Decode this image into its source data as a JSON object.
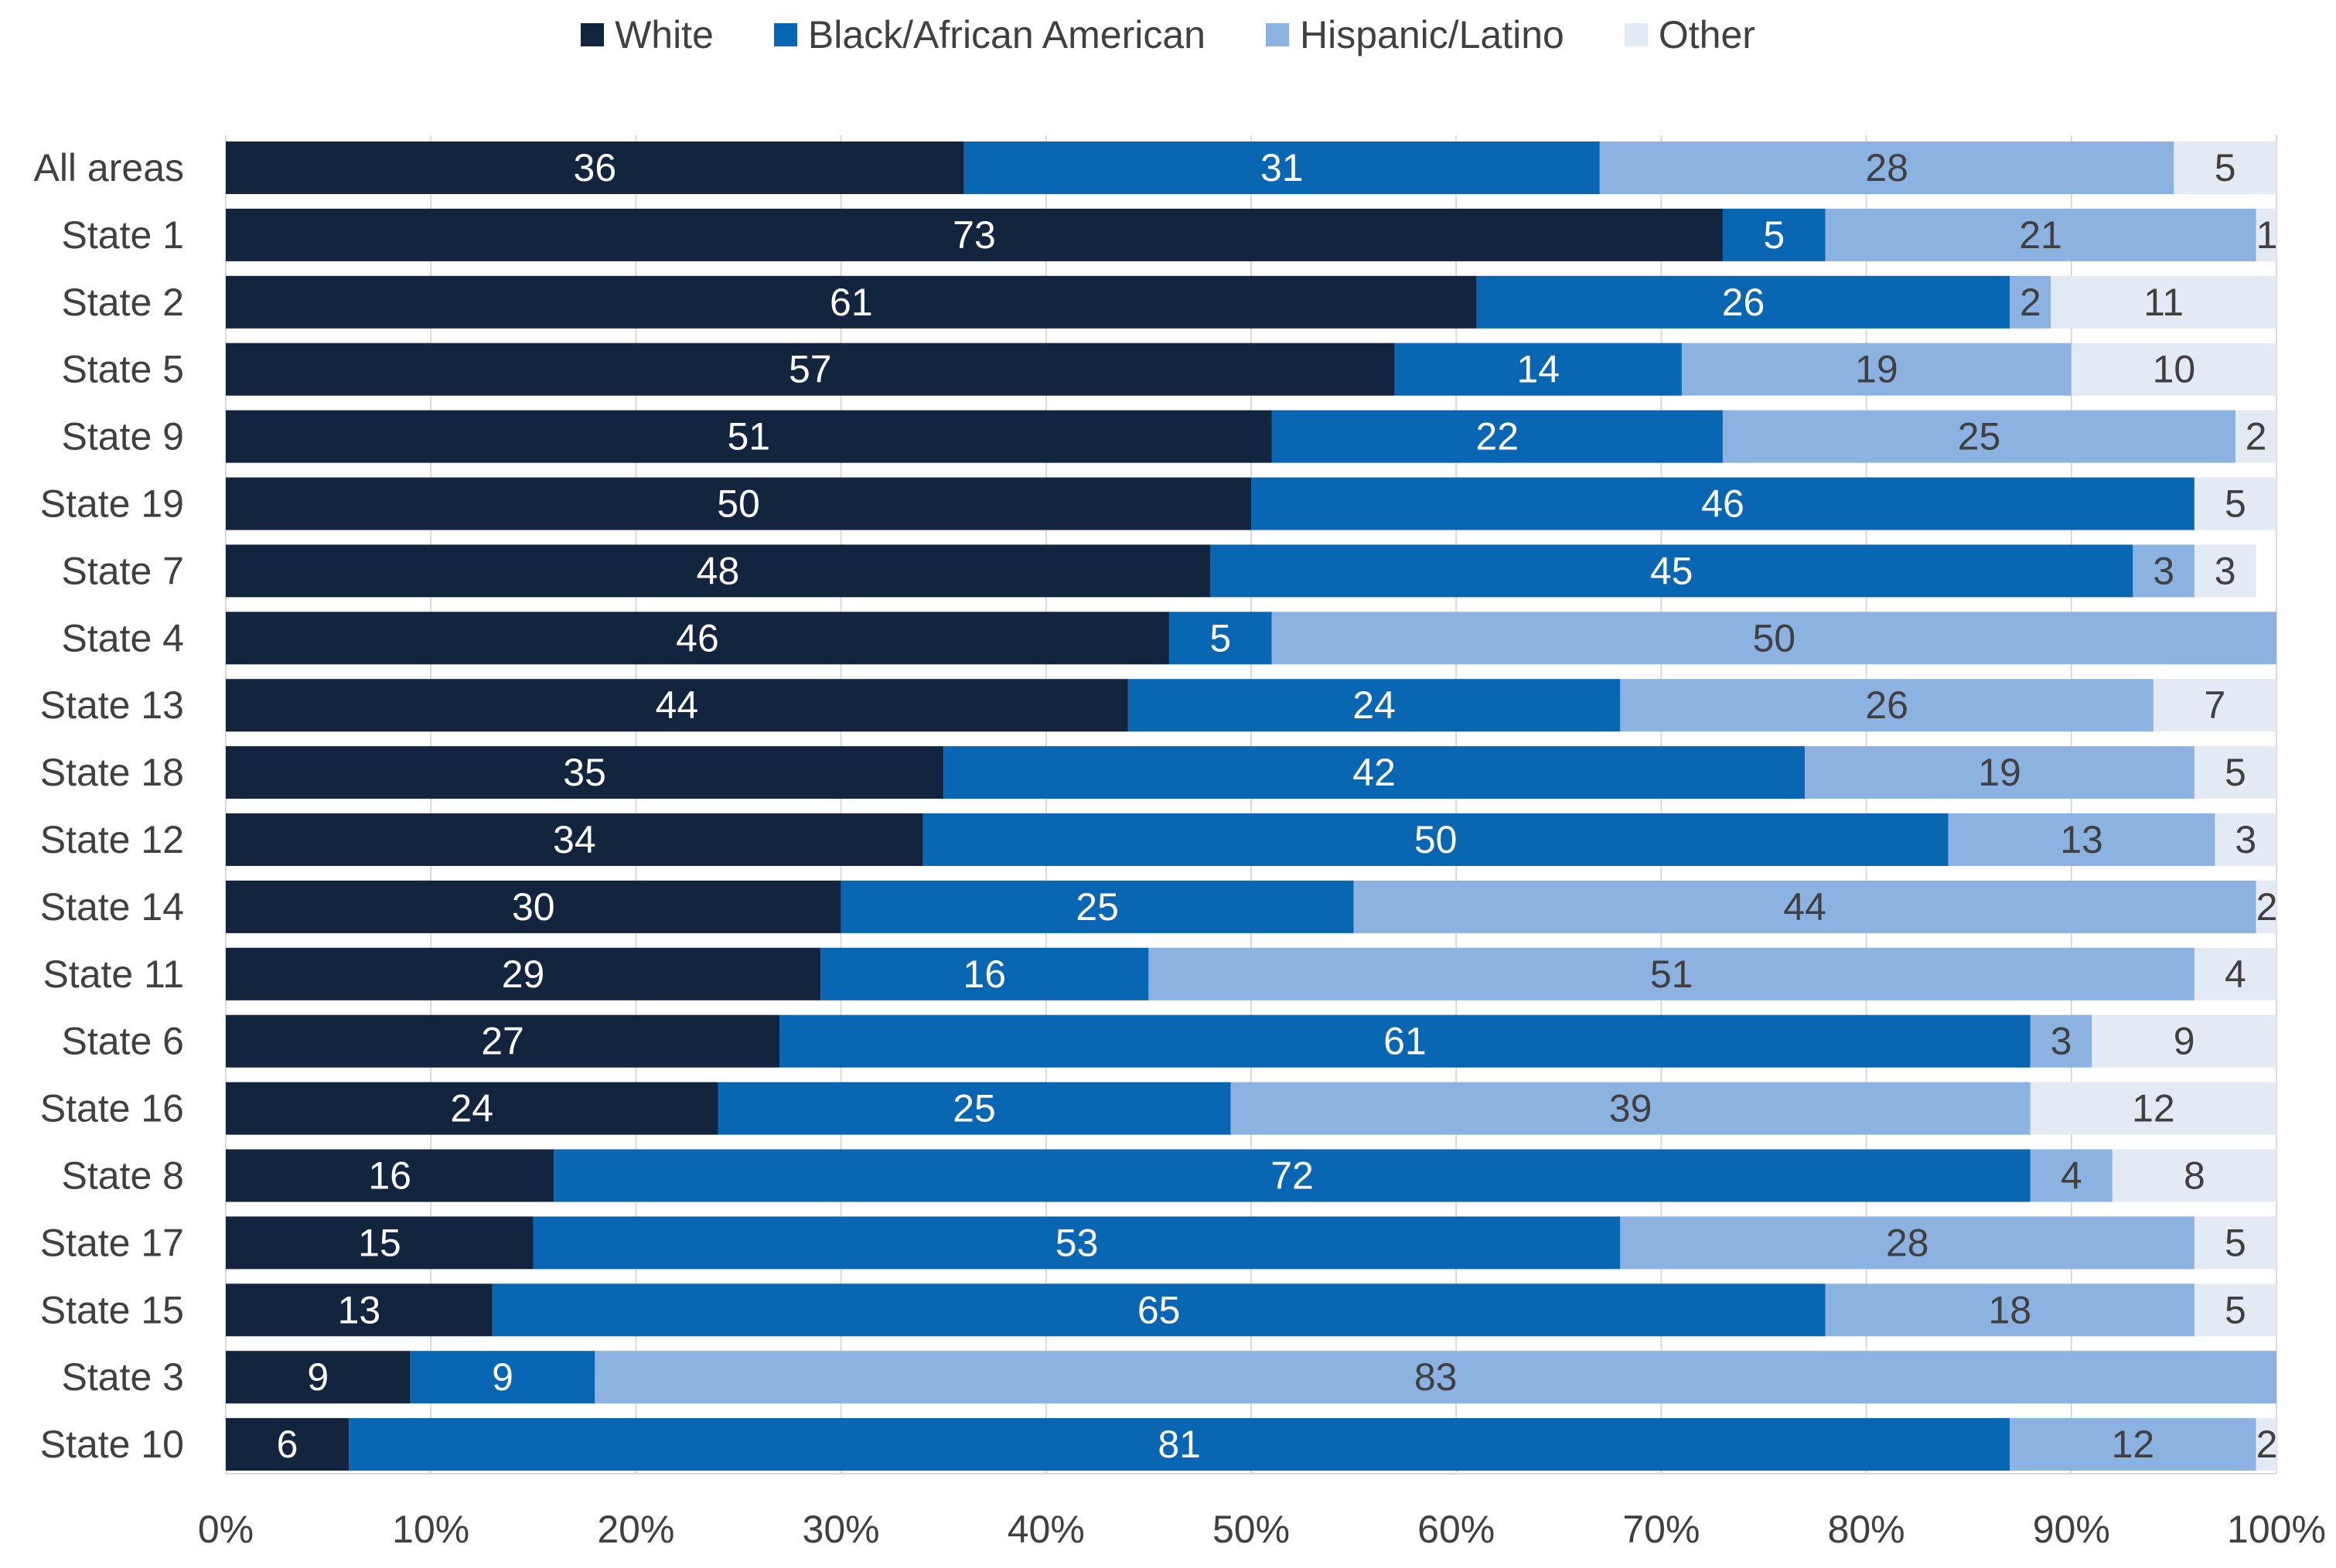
{
  "chart_data": {
    "type": "bar",
    "orientation": "horizontal",
    "stacked": "percent",
    "legend_position": "top",
    "xlim": [
      0,
      100
    ],
    "x_ticks": [
      "0%",
      "10%",
      "20%",
      "30%",
      "40%",
      "50%",
      "60%",
      "70%",
      "80%",
      "90%",
      "100%"
    ],
    "grid": true,
    "categories": [
      "All areas",
      "State 1",
      "State 2",
      "State 5",
      "State 9",
      "State 19",
      "State 7",
      "State 4",
      "State 13",
      "State 18",
      "State 12",
      "State 14",
      "State 11",
      "State 6",
      "State 16",
      "State 8",
      "State 17",
      "State 15",
      "State 3",
      "State 10"
    ],
    "series": [
      {
        "name": "White",
        "color": "#13243f",
        "label_color": "#ffffff",
        "values": [
          36,
          73,
          61,
          57,
          51,
          50,
          48,
          46,
          44,
          35,
          34,
          30,
          29,
          27,
          24,
          16,
          15,
          13,
          9,
          6
        ]
      },
      {
        "name": "Black/African American",
        "color": "#0866b2",
        "label_color": "#ffffff",
        "values": [
          31,
          5,
          26,
          14,
          22,
          46,
          45,
          5,
          24,
          42,
          50,
          25,
          16,
          61,
          25,
          72,
          53,
          65,
          9,
          81
        ]
      },
      {
        "name": "Hispanic/Latino",
        "color": "#8cb2e1",
        "label_color": "#404040",
        "values": [
          28,
          21,
          2,
          19,
          25,
          null,
          3,
          50,
          26,
          19,
          13,
          44,
          51,
          3,
          39,
          4,
          28,
          18,
          83,
          12
        ]
      },
      {
        "name": "Other",
        "color": "#e3eaf3",
        "label_color": "#404040",
        "values": [
          5,
          1,
          11,
          10,
          2,
          5,
          3,
          null,
          7,
          5,
          3,
          2,
          4,
          9,
          12,
          8,
          5,
          5,
          null,
          2
        ]
      }
    ]
  }
}
